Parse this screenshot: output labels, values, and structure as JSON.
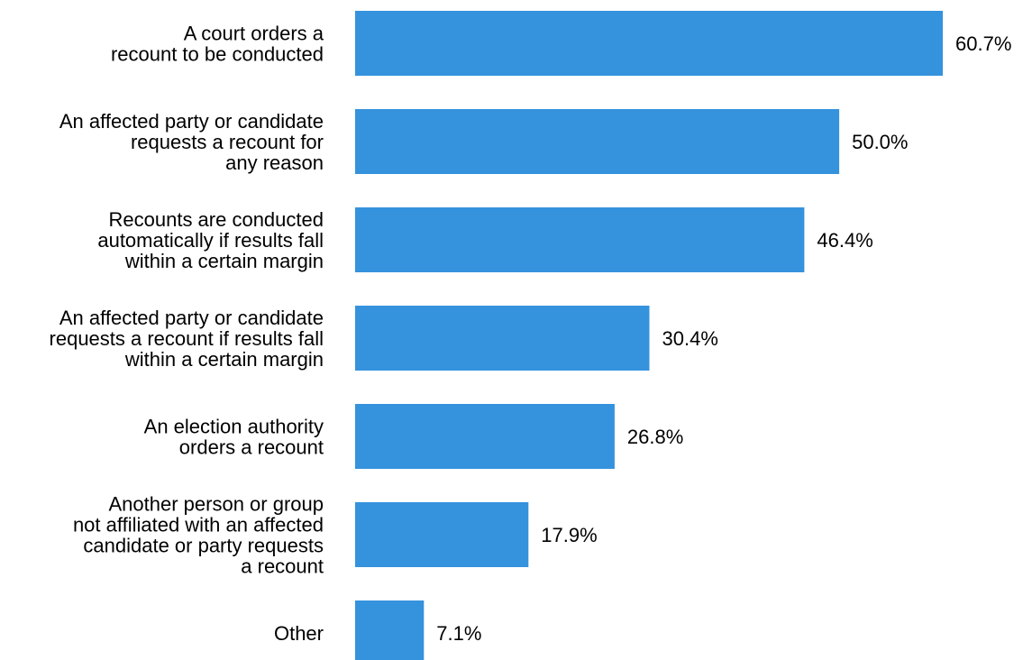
{
  "chart_data": {
    "type": "bar",
    "orientation": "horizontal",
    "categories": [
      [
        "A court orders a",
        "recount to be conducted"
      ],
      [
        "An affected party or candidate",
        "requests a recount for",
        "any reason"
      ],
      [
        "Recounts are conducted",
        "automatically if results fall",
        "within a certain margin"
      ],
      [
        "An affected party or candidate",
        "requests a recount if results fall",
        "within a certain margin"
      ],
      [
        "An election authority",
        "orders a recount"
      ],
      [
        "Another person or group",
        "not affiliated with an affected",
        "candidate or party requests",
        "a recount"
      ],
      [
        "Other"
      ]
    ],
    "values": [
      60.7,
      50.0,
      46.4,
      30.4,
      26.8,
      17.9,
      7.1
    ],
    "value_labels": [
      "60.7%",
      "50.0%",
      "46.4%",
      "30.4%",
      "26.8%",
      "17.9%",
      "7.1%"
    ],
    "unit": "%",
    "xlim": [
      0,
      60.7
    ],
    "bar_color": "#3592dd",
    "grid": false,
    "legend": "none",
    "title": "",
    "xlabel": "",
    "ylabel": ""
  }
}
